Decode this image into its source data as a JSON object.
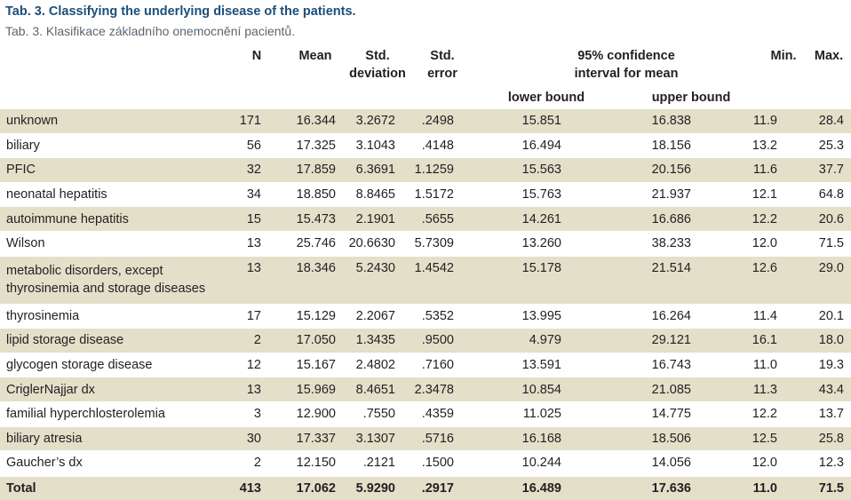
{
  "title": "Tab. 3. Classifying the underlying disease of the patients.",
  "subtitle": "Tab. 3. Klasifikace základního onemocnění pacientů.",
  "headers": {
    "n": "N",
    "mean": "Mean",
    "std_dev_l1": "Std.",
    "std_dev_l2": "deviation",
    "std_err_l1": "Std.",
    "std_err_l2": "error",
    "ci_l1": "95% confidence",
    "ci_l2": "interval for mean",
    "lower": "lower bound",
    "upper": "upper bound",
    "min": "Min.",
    "max": "Max."
  },
  "rows": [
    {
      "label": "unknown",
      "n": "171",
      "mean": "16.344",
      "sd": "3.2672",
      "se": ".2498",
      "lower": "15.851",
      "upper": "16.838",
      "min": "11.9",
      "max": "28.4"
    },
    {
      "label": "biliary",
      "n": "56",
      "mean": "17.325",
      "sd": "3.1043",
      "se": ".4148",
      "lower": "16.494",
      "upper": "18.156",
      "min": "13.2",
      "max": "25.3"
    },
    {
      "label": "PFIC",
      "n": "32",
      "mean": "17.859",
      "sd": "6.3691",
      "se": "1.1259",
      "lower": "15.563",
      "upper": "20.156",
      "min": "11.6",
      "max": "37.7"
    },
    {
      "label": "neonatal hepatitis",
      "n": "34",
      "mean": "18.850",
      "sd": "8.8465",
      "se": "1.5172",
      "lower": "15.763",
      "upper": "21.937",
      "min": "12.1",
      "max": "64.8"
    },
    {
      "label": "autoimmune hepatitis",
      "n": "15",
      "mean": "15.473",
      "sd": "2.1901",
      "se": ".5655",
      "lower": "14.261",
      "upper": "16.686",
      "min": "12.2",
      "max": "20.6"
    },
    {
      "label": "Wilson",
      "n": "13",
      "mean": "25.746",
      "sd": "20.6630",
      "se": "5.7309",
      "lower": "13.260",
      "upper": "38.233",
      "min": "12.0",
      "max": "71.5"
    },
    {
      "label": "metabolic disorders, except thyrosinemia and storage diseases",
      "n": "13",
      "mean": "18.346",
      "sd": "5.2430",
      "se": "1.4542",
      "lower": "15.178",
      "upper": "21.514",
      "min": "12.6",
      "max": "29.0"
    },
    {
      "label": "thyrosinemia",
      "n": "17",
      "mean": "15.129",
      "sd": "2.2067",
      "se": ".5352",
      "lower": "13.995",
      "upper": "16.264",
      "min": "11.4",
      "max": "20.1"
    },
    {
      "label": "lipid storage disease",
      "n": "2",
      "mean": "17.050",
      "sd": "1.3435",
      "se": ".9500",
      "lower": "4.979",
      "upper": "29.121",
      "min": "16.1",
      "max": "18.0"
    },
    {
      "label": "glycogen storage disease",
      "n": "12",
      "mean": "15.167",
      "sd": "2.4802",
      "se": ".7160",
      "lower": "13.591",
      "upper": "16.743",
      "min": "11.0",
      "max": "19.3"
    },
    {
      "label": "CriglerNajjar dx",
      "n": "13",
      "mean": "15.969",
      "sd": "8.4651",
      "se": "2.3478",
      "lower": "10.854",
      "upper": "21.085",
      "min": "11.3",
      "max": "43.4"
    },
    {
      "label": "familial hyperchlosterolemia",
      "n": "3",
      "mean": "12.900",
      "sd": ".7550",
      "se": ".4359",
      "lower": "11.025",
      "upper": "14.775",
      "min": "12.2",
      "max": "13.7"
    },
    {
      "label": "biliary atresia",
      "n": "30",
      "mean": "17.337",
      "sd": "3.1307",
      "se": ".5716",
      "lower": "16.168",
      "upper": "18.506",
      "min": "12.5",
      "max": "25.8"
    },
    {
      "label": "Gaucher’s dx",
      "n": "2",
      "mean": "12.150",
      "sd": ".2121",
      "se": ".1500",
      "lower": "10.244",
      "upper": "14.056",
      "min": "12.0",
      "max": "12.3"
    }
  ],
  "total": {
    "label": "Total",
    "n": "413",
    "mean": "17.062",
    "sd": "5.9290",
    "se": ".2917",
    "lower": "16.489",
    "upper": "17.636",
    "min": "11.0",
    "max": "71.5"
  },
  "colors": {
    "title": "#1d4e7a",
    "subtitle": "#5b6670",
    "shade": "#e4dfc9"
  }
}
